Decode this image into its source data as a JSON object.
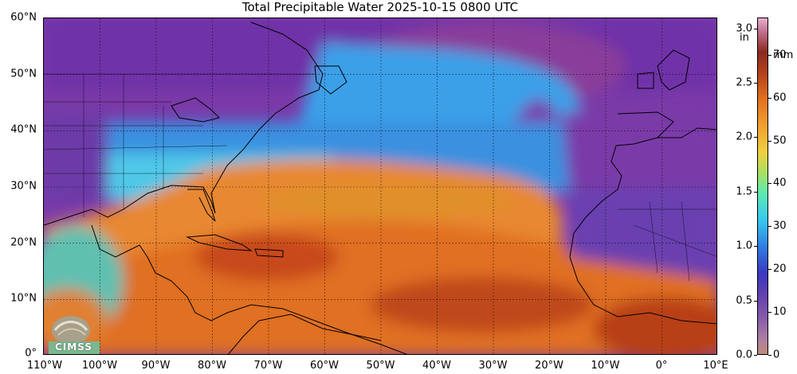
{
  "title": "Total Precipitable Water  2025-10-15 0800 UTC",
  "latitude_labels": [
    "60°N",
    "50°N",
    "40°N",
    "30°N",
    "20°N",
    "10°N",
    "0°"
  ],
  "longitude_labels": [
    "110°W",
    "100°W",
    "90°W",
    "80°W",
    "70°W",
    "60°W",
    "50°W",
    "40°W",
    "30°W",
    "20°W",
    "10°W",
    "0°",
    "10°E"
  ],
  "colorbar": {
    "unit_in": "in",
    "unit_mm": "mm",
    "inch_labels": [
      "3.0",
      "2.5",
      "2.0",
      "1.5",
      "1.0",
      "0.5",
      "0.0"
    ],
    "mm_labels": [
      "70",
      "60",
      "50",
      "40",
      "30",
      "20",
      "10",
      "0"
    ],
    "inch_range": [
      0,
      3.1
    ],
    "mm_range": [
      0,
      78.7
    ]
  },
  "logo": {
    "text": "CIMSS"
  },
  "map_extent": {
    "lon_min": -110,
    "lon_max": 10,
    "lat_min": 0,
    "lat_max": 60
  },
  "colors": {
    "very_moist": "#8a2a20",
    "moist": "#e07020",
    "medium": "#38c8f0",
    "dry": "#3a38c0",
    "very_dry": "#7a3aa8"
  }
}
